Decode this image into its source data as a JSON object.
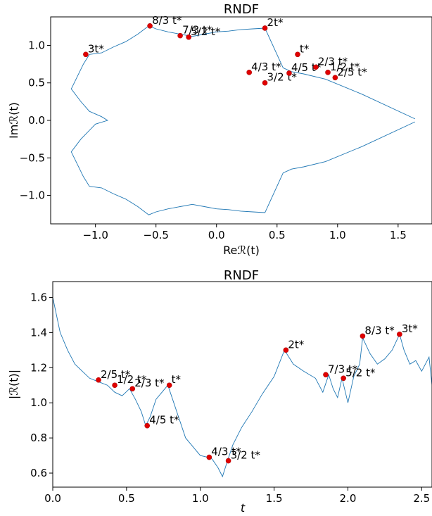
{
  "chart_data": [
    {
      "type": "line",
      "title": "RNDF",
      "xlabel": "Reℛ(t)",
      "ylabel": "Imℛ(t)",
      "xlim": [
        -1.37,
        1.78
      ],
      "ylim": [
        -1.38,
        1.38
      ],
      "xticks": [
        -1.0,
        -0.5,
        0.0,
        0.5,
        1.0,
        1.5
      ],
      "xtick_labels": [
        "−1.0",
        "−0.5",
        "0.0",
        "0.5",
        "1.0",
        "1.5"
      ],
      "yticks": [
        -1.0,
        -0.5,
        0.0,
        0.5,
        1.0
      ],
      "ytick_labels": [
        "−1.0",
        "−0.5",
        "0.0",
        "0.5",
        "1.0"
      ],
      "series": [
        {
          "x": [
            1.64,
            1.2,
            0.9,
            0.72,
            0.62,
            0.55,
            0.4,
            0.3,
            0.2,
            0.1,
            0.0,
            -0.1,
            -0.2,
            -0.3,
            -0.4,
            -0.5,
            -0.56,
            -0.65,
            -0.75,
            -0.85,
            -0.95,
            -1.05,
            -1.1,
            -1.2,
            -1.12,
            -1.05,
            -0.95,
            -0.9,
            -1.0,
            -1.12,
            -1.2,
            -1.1,
            -1.05,
            -0.95,
            -0.85,
            -0.75,
            -0.65,
            -0.56,
            -0.5,
            -0.4,
            -0.3,
            -0.2,
            -0.1,
            0.0,
            0.1,
            0.2,
            0.3,
            0.4,
            0.55,
            0.62,
            0.72,
            0.9,
            1.2,
            1.64
          ],
          "y": [
            0.02,
            0.35,
            0.55,
            0.62,
            0.65,
            0.7,
            1.23,
            1.22,
            1.21,
            1.19,
            1.18,
            1.15,
            1.12,
            1.15,
            1.18,
            1.22,
            1.26,
            1.15,
            1.05,
            0.98,
            0.9,
            0.88,
            0.75,
            0.42,
            0.25,
            0.12,
            0.05,
            0.0,
            -0.05,
            -0.25,
            -0.42,
            -0.75,
            -0.88,
            -0.9,
            -0.98,
            -1.05,
            -1.15,
            -1.26,
            -1.22,
            -1.18,
            -1.15,
            -1.12,
            -1.15,
            -1.18,
            -1.19,
            -1.21,
            -1.22,
            -1.23,
            -0.7,
            -0.65,
            -0.62,
            -0.55,
            -0.35,
            -0.02
          ]
        }
      ],
      "points": [
        {
          "label": "3t*",
          "x": -1.08,
          "y": 0.88
        },
        {
          "label": "8/3 t*",
          "x": -0.55,
          "y": 1.26
        },
        {
          "label": "7/3 t*",
          "x": -0.3,
          "y": 1.13
        },
        {
          "label": "5/2 t*",
          "x": -0.23,
          "y": 1.11
        },
        {
          "label": "2t*",
          "x": 0.4,
          "y": 1.23
        },
        {
          "label": "t*",
          "x": 0.67,
          "y": 0.88
        },
        {
          "label": "4/3 t*",
          "x": 0.27,
          "y": 0.64
        },
        {
          "label": "3/2 t*",
          "x": 0.4,
          "y": 0.5
        },
        {
          "label": "4/5 t*",
          "x": 0.6,
          "y": 0.63
        },
        {
          "label": "2/3 t*",
          "x": 0.82,
          "y": 0.71
        },
        {
          "label": "1/2 t*",
          "x": 0.92,
          "y": 0.64
        },
        {
          "label": "2/5 t*",
          "x": 0.98,
          "y": 0.57
        }
      ]
    },
    {
      "type": "line",
      "title": "RNDF",
      "xlabel": "t",
      "ylabel": "|ℛ(t)|",
      "xlim": [
        0.0,
        2.57
      ],
      "ylim": [
        0.52,
        1.69
      ],
      "xticks": [
        0.0,
        0.5,
        1.0,
        1.5,
        2.0,
        2.5
      ],
      "xtick_labels": [
        "0.0",
        "0.5",
        "1.0",
        "1.5",
        "2.0",
        "2.5"
      ],
      "yticks": [
        0.6,
        0.8,
        1.0,
        1.2,
        1.4,
        1.6
      ],
      "ytick_labels": [
        "0.6",
        "0.8",
        "1.0",
        "1.2",
        "1.4",
        "1.6"
      ],
      "series": [
        {
          "x": [
            0.0,
            0.05,
            0.1,
            0.15,
            0.2,
            0.25,
            0.31,
            0.37,
            0.42,
            0.47,
            0.52,
            0.56,
            0.6,
            0.63,
            0.66,
            0.7,
            0.74,
            0.78,
            0.82,
            0.86,
            0.9,
            0.95,
            1.0,
            1.05,
            1.08,
            1.12,
            1.15,
            1.18,
            1.22,
            1.28,
            1.35,
            1.42,
            1.5,
            1.57,
            1.63,
            1.7,
            1.78,
            1.83,
            1.87,
            1.9,
            1.93,
            1.96,
            2.0,
            2.04,
            2.08,
            2.1,
            2.15,
            2.2,
            2.25,
            2.3,
            2.35,
            2.38,
            2.42,
            2.46,
            2.5,
            2.55,
            2.57
          ],
          "y": [
            1.6,
            1.4,
            1.3,
            1.22,
            1.18,
            1.14,
            1.12,
            1.1,
            1.06,
            1.04,
            1.08,
            1.02,
            0.95,
            0.87,
            0.92,
            1.02,
            1.06,
            1.1,
            1.0,
            0.9,
            0.8,
            0.75,
            0.7,
            0.69,
            0.68,
            0.63,
            0.58,
            0.66,
            0.76,
            0.86,
            0.95,
            1.05,
            1.15,
            1.3,
            1.22,
            1.18,
            1.14,
            1.06,
            1.16,
            1.08,
            1.03,
            1.14,
            1.0,
            1.15,
            1.22,
            1.37,
            1.28,
            1.22,
            1.25,
            1.3,
            1.39,
            1.3,
            1.22,
            1.24,
            1.18,
            1.26,
            1.1
          ]
        }
      ],
      "points": [
        {
          "label": "2/5 t*",
          "x": 0.31,
          "y": 1.13
        },
        {
          "label": "1/2 t*",
          "x": 0.42,
          "y": 1.1
        },
        {
          "label": "2/3 t*",
          "x": 0.54,
          "y": 1.08
        },
        {
          "label": "t*",
          "x": 0.79,
          "y": 1.1
        },
        {
          "label": "4/5 t*",
          "x": 0.64,
          "y": 0.87
        },
        {
          "label": "4/3 t*",
          "x": 1.06,
          "y": 0.69
        },
        {
          "label": "3/2 t*",
          "x": 1.19,
          "y": 0.67
        },
        {
          "label": "2t*",
          "x": 1.58,
          "y": 1.3
        },
        {
          "label": "7/3 t*",
          "x": 1.85,
          "y": 1.16
        },
        {
          "label": "5/2 t*",
          "x": 1.97,
          "y": 1.14
        },
        {
          "label": "8/3 t*",
          "x": 2.1,
          "y": 1.38
        },
        {
          "label": "3t*",
          "x": 2.35,
          "y": 1.39
        }
      ]
    }
  ]
}
